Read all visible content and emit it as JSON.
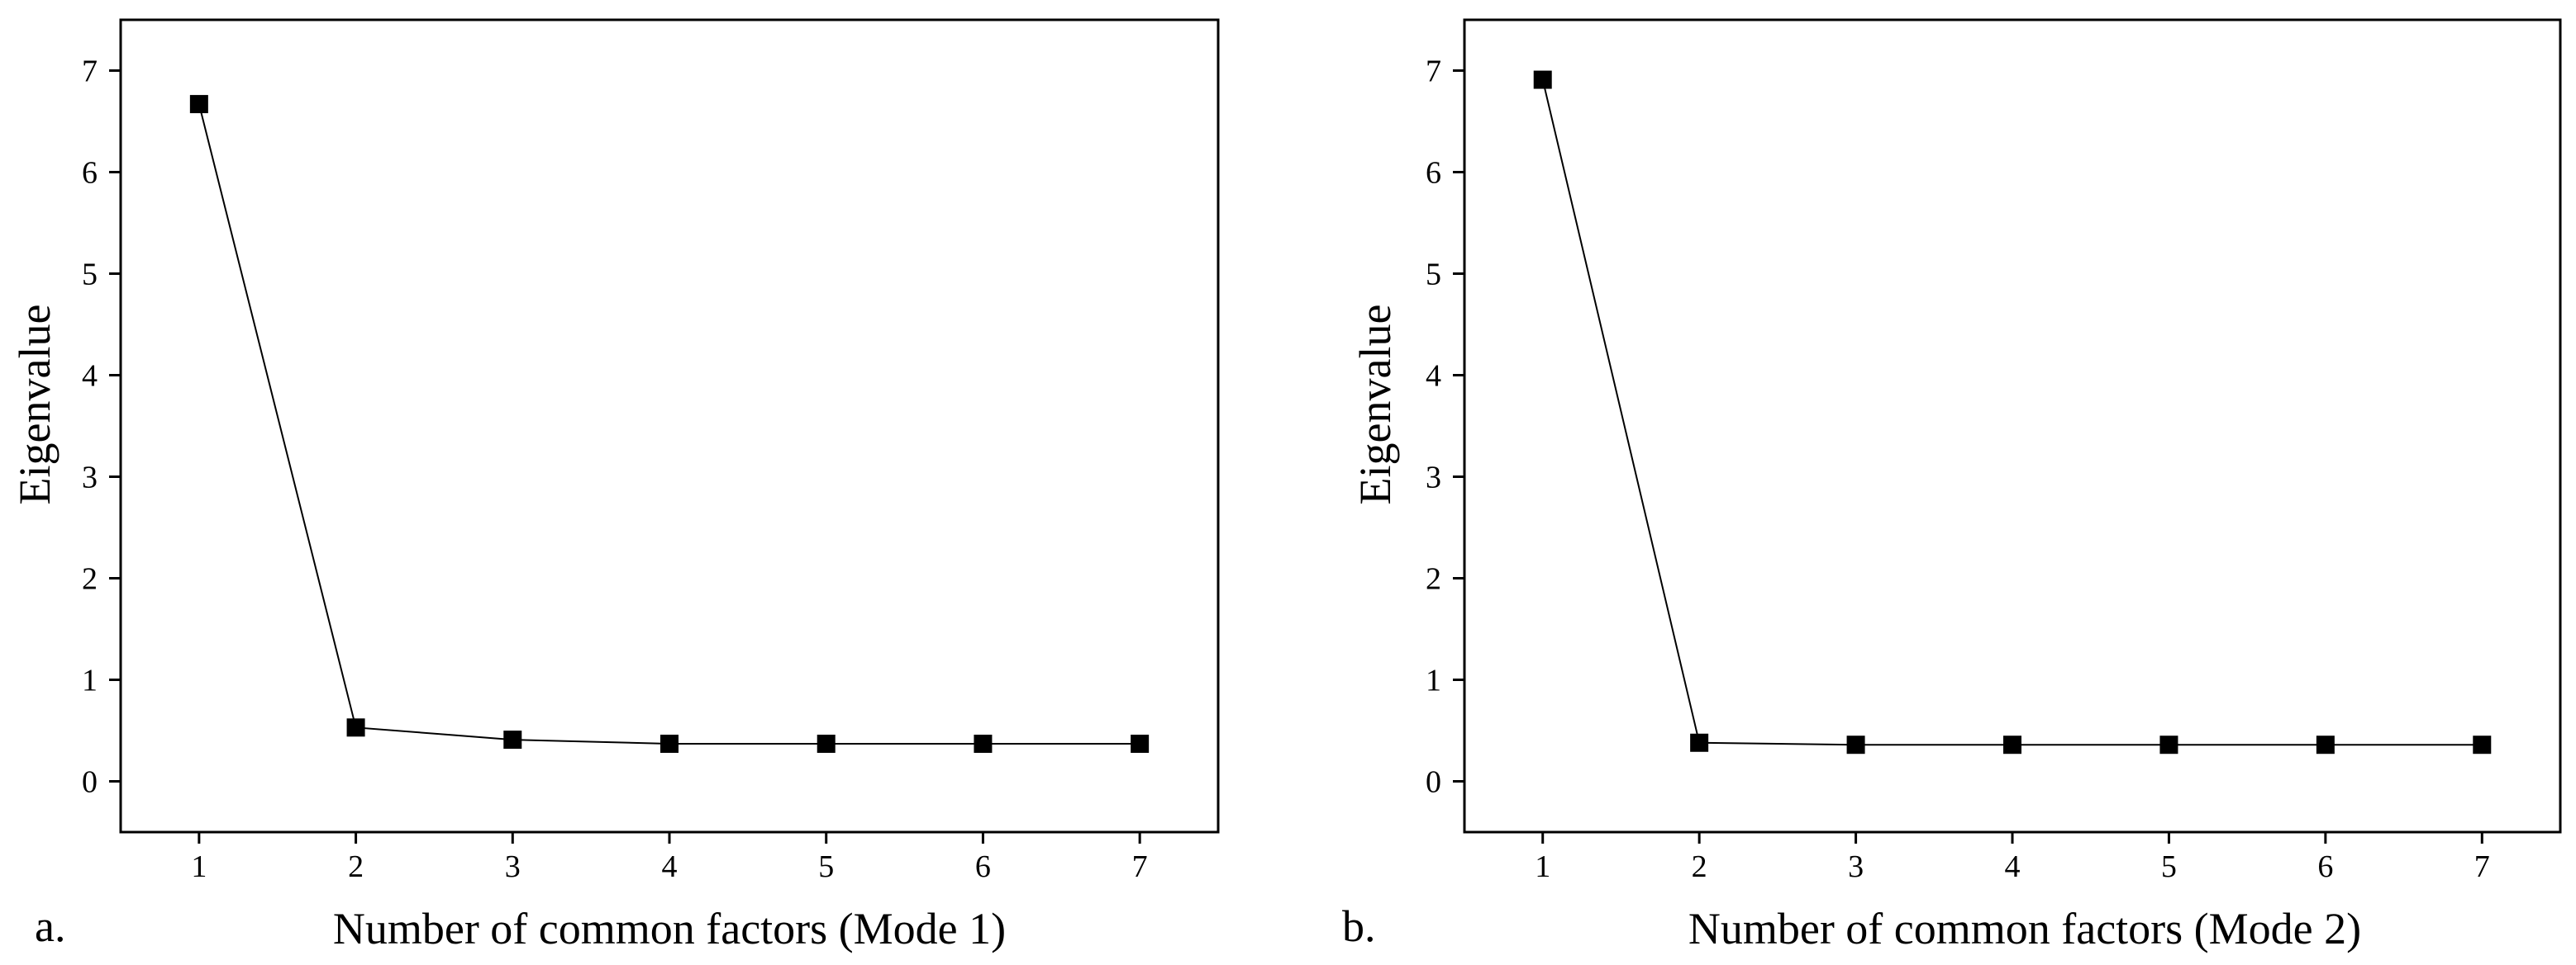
{
  "chart_data": [
    {
      "type": "line",
      "panel_label": "a.",
      "title": "",
      "xlabel": "Number of common factors (Mode 1)",
      "ylabel": "Eigenvalue",
      "x": [
        1,
        2,
        3,
        4,
        5,
        6,
        7
      ],
      "series": [
        {
          "values": [
            6.67,
            0.53,
            0.41,
            0.37,
            0.37,
            0.37,
            0.37
          ]
        }
      ],
      "xticks": [
        1,
        2,
        3,
        4,
        5,
        6,
        7
      ],
      "yticks": [
        0,
        1,
        2,
        3,
        4,
        5,
        6,
        7
      ],
      "xlim": [
        0.5,
        7.5
      ],
      "ylim": [
        -0.5,
        7.5
      ],
      "grid": false,
      "marker": "square",
      "color": "#000000"
    },
    {
      "type": "line",
      "panel_label": "b.",
      "title": "",
      "xlabel": "Number of common factors (Mode 2)",
      "ylabel": "Eigenvalue",
      "x": [
        1,
        2,
        3,
        4,
        5,
        6,
        7
      ],
      "series": [
        {
          "values": [
            6.91,
            0.38,
            0.36,
            0.36,
            0.36,
            0.36,
            0.36
          ]
        }
      ],
      "xticks": [
        1,
        2,
        3,
        4,
        5,
        6,
        7
      ],
      "yticks": [
        0,
        1,
        2,
        3,
        4,
        5,
        6,
        7
      ],
      "xlim": [
        0.5,
        7.5
      ],
      "ylim": [
        -0.5,
        7.5
      ],
      "grid": false,
      "marker": "square",
      "color": "#000000"
    }
  ]
}
